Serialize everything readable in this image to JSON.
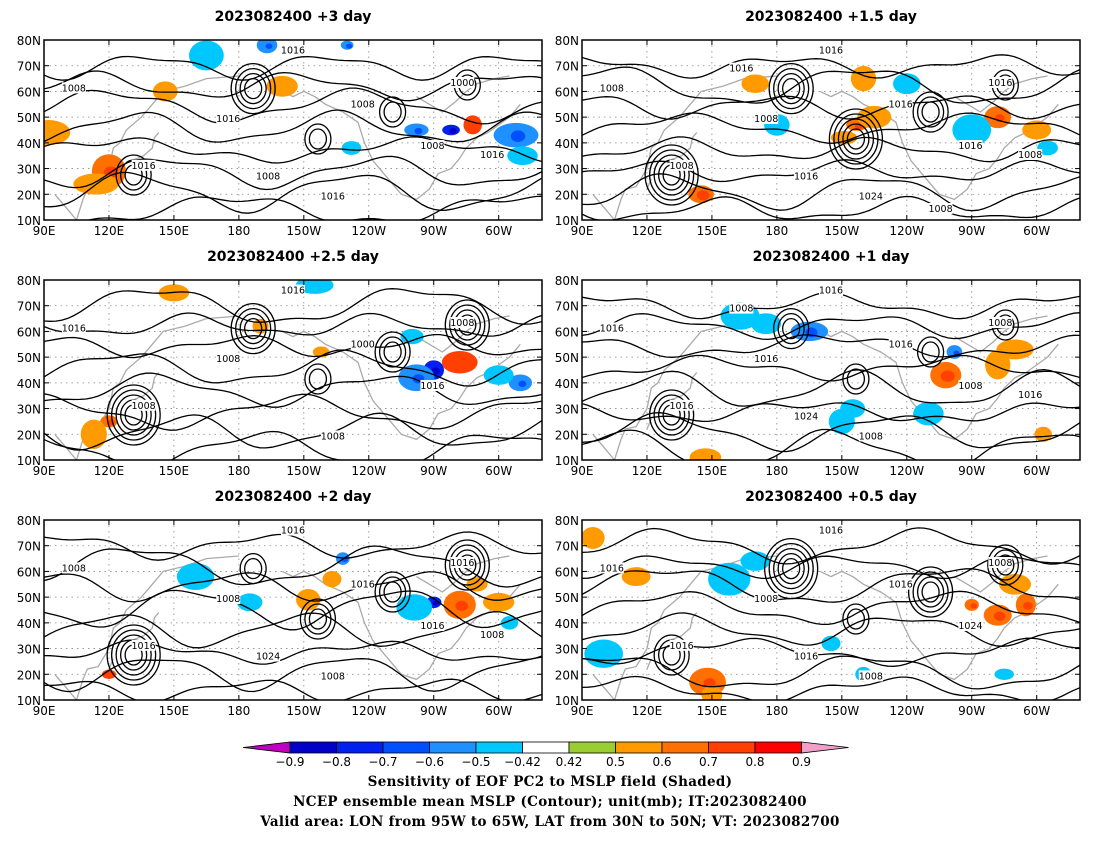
{
  "panels": [
    {
      "title": "2023082400  +3 day",
      "contour_labels": [
        "1016",
        "1008",
        "1000",
        "1008",
        "1016",
        "1008",
        "1016",
        "1016",
        "1008",
        "1016"
      ],
      "shading": [
        {
          "lon": 193,
          "lat": 78,
          "v": -0.6
        },
        {
          "lon": 230,
          "lat": 78,
          "v": -0.6
        },
        {
          "lon": 165,
          "lat": 74,
          "v": -0.5
        },
        {
          "lon": 200,
          "lat": 62,
          "v": 0.5
        },
        {
          "lon": 146,
          "lat": 60,
          "v": 0.5
        },
        {
          "lon": 278,
          "lat": 45,
          "v": -0.8
        },
        {
          "lon": 288,
          "lat": 47,
          "v": 0.7
        },
        {
          "lon": 262,
          "lat": 45,
          "v": -0.6
        },
        {
          "lon": 308,
          "lat": 43,
          "v": -0.6
        },
        {
          "lon": 311,
          "lat": 35,
          "v": -0.5
        },
        {
          "lon": 120,
          "lat": 29,
          "v": 0.6
        },
        {
          "lon": 114,
          "lat": 24,
          "v": 0.5
        },
        {
          "lon": 92,
          "lat": 44,
          "v": 0.5
        },
        {
          "lon": 232,
          "lat": 38,
          "v": -0.5
        }
      ]
    },
    {
      "title": "2023082400  +1.5 day",
      "contour_labels": [
        "1016",
        "1008",
        "1016",
        "1016",
        "1008",
        "1016",
        "1008",
        "1024",
        "1016",
        "1008",
        "1016",
        "1008"
      ],
      "shading": [
        {
          "lon": 217,
          "lat": 47,
          "v": 0.6
        },
        {
          "lon": 225,
          "lat": 50,
          "v": 0.5
        },
        {
          "lon": 211,
          "lat": 42,
          "v": 0.5
        },
        {
          "lon": 282,
          "lat": 50,
          "v": 0.6
        },
        {
          "lon": 270,
          "lat": 45,
          "v": -0.5
        },
        {
          "lon": 240,
          "lat": 63,
          "v": -0.5
        },
        {
          "lon": 300,
          "lat": 45,
          "v": 0.5
        },
        {
          "lon": 305,
          "lat": 38,
          "v": -0.5
        },
        {
          "lon": 180,
          "lat": 47,
          "v": -0.5
        },
        {
          "lon": 145,
          "lat": 20,
          "v": 0.6
        },
        {
          "lon": 170,
          "lat": 63,
          "v": 0.5
        },
        {
          "lon": 220,
          "lat": 65,
          "v": 0.5
        }
      ]
    },
    {
      "title": "2023082400  +2.5 day",
      "contour_labels": [
        "1016",
        "1016",
        "1008",
        "1000",
        "1008",
        "1016",
        "1008",
        "1008"
      ],
      "shading": [
        {
          "lon": 270,
          "lat": 45,
          "v": -0.8
        },
        {
          "lon": 282,
          "lat": 48,
          "v": 0.7
        },
        {
          "lon": 262,
          "lat": 42,
          "v": -0.6
        },
        {
          "lon": 310,
          "lat": 40,
          "v": -0.6
        },
        {
          "lon": 300,
          "lat": 43,
          "v": -0.5
        },
        {
          "lon": 215,
          "lat": 78,
          "v": -0.5
        },
        {
          "lon": 120,
          "lat": 25,
          "v": 0.6
        },
        {
          "lon": 113,
          "lat": 20,
          "v": 0.5
        },
        {
          "lon": 150,
          "lat": 75,
          "v": 0.5
        },
        {
          "lon": 218,
          "lat": 52,
          "v": 0.5
        },
        {
          "lon": 190,
          "lat": 62,
          "v": 0.5
        },
        {
          "lon": 260,
          "lat": 58,
          "v": -0.5
        }
      ]
    },
    {
      "title": "2023082400  +1 day",
      "contour_labels": [
        "1016",
        "1016",
        "1008",
        "1016",
        "1016",
        "1008",
        "1016",
        "1008",
        "1024",
        "1016",
        "1008"
      ],
      "shading": [
        {
          "lon": 175,
          "lat": 63,
          "v": -0.5
        },
        {
          "lon": 163,
          "lat": 66,
          "v": -0.5
        },
        {
          "lon": 195,
          "lat": 60,
          "v": -0.6
        },
        {
          "lon": 215,
          "lat": 30,
          "v": -0.5
        },
        {
          "lon": 210,
          "lat": 25,
          "v": -0.5
        },
        {
          "lon": 258,
          "lat": 43,
          "v": 0.6
        },
        {
          "lon": 282,
          "lat": 47,
          "v": 0.5
        },
        {
          "lon": 290,
          "lat": 53,
          "v": 0.5
        },
        {
          "lon": 262,
          "lat": 52,
          "v": -0.6
        },
        {
          "lon": 147,
          "lat": 11,
          "v": 0.5
        },
        {
          "lon": 303,
          "lat": 20,
          "v": 0.5
        },
        {
          "lon": 250,
          "lat": 28,
          "v": -0.5
        }
      ]
    },
    {
      "title": "2023082400  +2 day",
      "contour_labels": [
        "1016",
        "1008",
        "1016",
        "1016",
        "1008",
        "1016",
        "1016",
        "1008",
        "1024",
        "1008"
      ],
      "shading": [
        {
          "lon": 228,
          "lat": 65,
          "v": -0.6
        },
        {
          "lon": 270,
          "lat": 48,
          "v": -0.8
        },
        {
          "lon": 282,
          "lat": 47,
          "v": 0.6
        },
        {
          "lon": 212,
          "lat": 49,
          "v": 0.5
        },
        {
          "lon": 223,
          "lat": 57,
          "v": 0.5
        },
        {
          "lon": 185,
          "lat": 48,
          "v": -0.5
        },
        {
          "lon": 261,
          "lat": 46,
          "v": -0.5
        },
        {
          "lon": 305,
          "lat": 40,
          "v": -0.5
        },
        {
          "lon": 120,
          "lat": 20,
          "v": 0.7
        },
        {
          "lon": 160,
          "lat": 58,
          "v": -0.5
        },
        {
          "lon": 300,
          "lat": 48,
          "v": 0.5
        },
        {
          "lon": 290,
          "lat": 55,
          "v": 0.5
        }
      ]
    },
    {
      "title": "2023082400  +0.5 day",
      "contour_labels": [
        "1016",
        "1016",
        "1008",
        "1016",
        "1008",
        "1024",
        "1016",
        "1008",
        "1016"
      ],
      "shading": [
        {
          "lon": 170,
          "lat": 64,
          "v": -0.5
        },
        {
          "lon": 158,
          "lat": 57,
          "v": -0.5
        },
        {
          "lon": 205,
          "lat": 32,
          "v": -0.5
        },
        {
          "lon": 220,
          "lat": 20,
          "v": -0.5
        },
        {
          "lon": 148,
          "lat": 17,
          "v": 0.6
        },
        {
          "lon": 150,
          "lat": 12,
          "v": 0.5
        },
        {
          "lon": 270,
          "lat": 47,
          "v": 0.6
        },
        {
          "lon": 290,
          "lat": 55,
          "v": 0.5
        },
        {
          "lon": 282,
          "lat": 43,
          "v": 0.6
        },
        {
          "lon": 295,
          "lat": 47,
          "v": 0.6
        },
        {
          "lon": 95,
          "lat": 73,
          "v": 0.5
        },
        {
          "lon": 285,
          "lat": 20,
          "v": -0.5
        },
        {
          "lon": 100,
          "lat": 28,
          "v": -0.5
        },
        {
          "lon": 115,
          "lat": 58,
          "v": 0.5
        }
      ]
    }
  ],
  "axes": {
    "lat_labels": [
      "10N",
      "20N",
      "30N",
      "40N",
      "50N",
      "60N",
      "70N",
      "80N"
    ],
    "lat_values": [
      10,
      20,
      30,
      40,
      50,
      60,
      70,
      80
    ],
    "lon_labels": [
      "90E",
      "120E",
      "150E",
      "180",
      "150W",
      "120W",
      "90W",
      "60W"
    ],
    "lon_values": [
      90,
      120,
      150,
      180,
      210,
      240,
      270,
      300
    ],
    "lon_range": [
      90,
      320
    ],
    "lat_range": [
      10,
      80
    ]
  },
  "colorbar": {
    "tick_labels": [
      "−0.9",
      "−0.8",
      "−0.7",
      "−0.6",
      "−0.5",
      "−0.42",
      "0.42",
      "0.5",
      "0.6",
      "0.7",
      "0.8",
      "0.9"
    ],
    "left_arrow_color": "#c000c0",
    "right_arrow_color": "#f0a0c8",
    "colors": [
      "#0000c8",
      "#0020f0",
      "#0050ff",
      "#1e90ff",
      "#00c8ff",
      "#ffffff",
      "#9acd32",
      "#ff9a00",
      "#ff7000",
      "#ff4000",
      "#ff0000"
    ]
  },
  "colors": {
    "contour": "#000000",
    "coastline": "#aaaaaa",
    "grid": "#888888"
  },
  "captions": {
    "line1": "Sensitivity of EOF PC2 to MSLP field (Shaded)",
    "line2": "NCEP ensemble mean MSLP (Contour); unit(mb); IT:2023082400",
    "line3": "Valid area: LON from 95W to 65W, LAT from 30N to 50N; VT: 2023082700"
  }
}
